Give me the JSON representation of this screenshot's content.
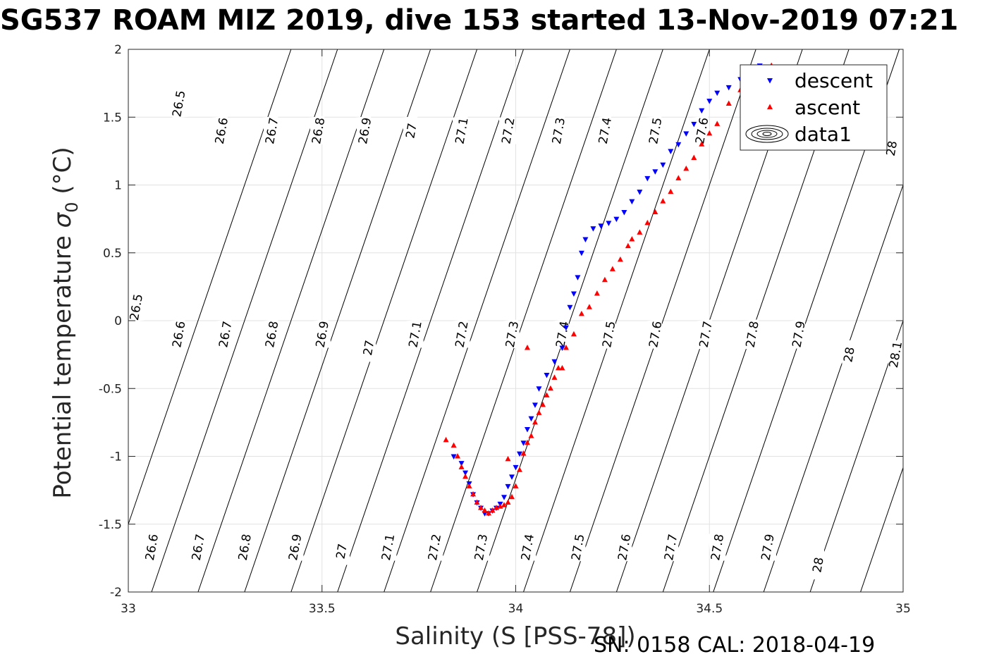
{
  "chart_data": {
    "type": "scatter",
    "title": "SG537 ROAM MIZ 2019, dive 153 started 13-Nov-2019 07:21",
    "xlabel": "Salinity (S [PSS-78])",
    "ylabel_main": "Potential temperature ",
    "ylabel_sym": "σ",
    "ylabel_sub": "0",
    "ylabel_unit": " (°C)",
    "xlim": [
      33,
      35
    ],
    "ylim": [
      -2,
      2
    ],
    "xticks": [
      33,
      33.5,
      34,
      34.5,
      35
    ],
    "xtick_labels": [
      "33",
      "33.5",
      "34",
      "34.5",
      "35"
    ],
    "yticks": [
      -2,
      -1.5,
      -1,
      -0.5,
      0,
      0.5,
      1,
      1.5,
      2
    ],
    "ytick_labels": [
      "-2",
      "-1.5",
      "-1",
      "-0.5",
      "0",
      "0.5",
      "1",
      "1.5",
      "2"
    ],
    "grid": true,
    "legend_position": "top-right",
    "density_contours": [
      {
        "value": "26.5",
        "x_at_bottom": 32.94
      },
      {
        "value": "26.6",
        "x_at_bottom": 33.06
      },
      {
        "value": "26.7",
        "x_at_bottom": 33.18
      },
      {
        "value": "26.8",
        "x_at_bottom": 33.3
      },
      {
        "value": "26.9",
        "x_at_bottom": 33.42
      },
      {
        "value": "27",
        "x_at_bottom": 33.54
      },
      {
        "value": "27.1",
        "x_at_bottom": 33.66
      },
      {
        "value": "27.2",
        "x_at_bottom": 33.78
      },
      {
        "value": "27.3",
        "x_at_bottom": 33.9
      },
      {
        "value": "27.4",
        "x_at_bottom": 34.02
      },
      {
        "value": "27.5",
        "x_at_bottom": 34.14
      },
      {
        "value": "27.6",
        "x_at_bottom": 34.26
      },
      {
        "value": "27.7",
        "x_at_bottom": 34.38
      },
      {
        "value": "27.8",
        "x_at_bottom": 34.51
      },
      {
        "value": "27.9",
        "x_at_bottom": 34.64
      },
      {
        "value": "28",
        "x_at_bottom": 34.76
      },
      {
        "value": "28.1",
        "x_at_bottom": 34.89
      }
    ],
    "contour_labels": [
      {
        "text": "26.5",
        "s": 33.13,
        "t": 1.6
      },
      {
        "text": "26.6",
        "s": 33.24,
        "t": 1.4
      },
      {
        "text": "26.7",
        "s": 33.37,
        "t": 1.4
      },
      {
        "text": "26.8",
        "s": 33.49,
        "t": 1.4
      },
      {
        "text": "26.9",
        "s": 33.61,
        "t": 1.4
      },
      {
        "text": "27",
        "s": 33.73,
        "t": 1.4
      },
      {
        "text": "27.1",
        "s": 33.86,
        "t": 1.4
      },
      {
        "text": "27.2",
        "s": 33.98,
        "t": 1.4
      },
      {
        "text": "27.3",
        "s": 34.11,
        "t": 1.4
      },
      {
        "text": "27.4",
        "s": 34.23,
        "t": 1.4
      },
      {
        "text": "27.5",
        "s": 34.36,
        "t": 1.4
      },
      {
        "text": "27.6",
        "s": 34.48,
        "t": 1.4
      },
      {
        "text": "28",
        "s": 34.97,
        "t": 1.27
      },
      {
        "text": "26.5",
        "s": 33.02,
        "t": 0.1
      },
      {
        "text": "26.6",
        "s": 33.13,
        "t": -0.1
      },
      {
        "text": "26.7",
        "s": 33.25,
        "t": -0.1
      },
      {
        "text": "26.8",
        "s": 33.37,
        "t": -0.1
      },
      {
        "text": "26.9",
        "s": 33.5,
        "t": -0.1
      },
      {
        "text": "27",
        "s": 33.62,
        "t": -0.2
      },
      {
        "text": "27.1",
        "s": 33.74,
        "t": -0.1
      },
      {
        "text": "27.2",
        "s": 33.86,
        "t": -0.1
      },
      {
        "text": "27.3",
        "s": 33.99,
        "t": -0.1
      },
      {
        "text": "27.4",
        "s": 34.12,
        "t": -0.1
      },
      {
        "text": "27.5",
        "s": 34.24,
        "t": -0.1
      },
      {
        "text": "27.6",
        "s": 34.36,
        "t": -0.1
      },
      {
        "text": "27.7",
        "s": 34.49,
        "t": -0.1
      },
      {
        "text": "27.8",
        "s": 34.61,
        "t": -0.1
      },
      {
        "text": "27.9",
        "s": 34.73,
        "t": -0.1
      },
      {
        "text": "28",
        "s": 34.86,
        "t": -0.25
      },
      {
        "text": "28.1",
        "s": 34.98,
        "t": -0.25
      },
      {
        "text": "26.6",
        "s": 33.06,
        "t": -1.67
      },
      {
        "text": "26.7",
        "s": 33.18,
        "t": -1.67
      },
      {
        "text": "26.8",
        "s": 33.3,
        "t": -1.67
      },
      {
        "text": "26.9",
        "s": 33.43,
        "t": -1.67
      },
      {
        "text": "27",
        "s": 33.55,
        "t": -1.7
      },
      {
        "text": "27.1",
        "s": 33.67,
        "t": -1.67
      },
      {
        "text": "27.2",
        "s": 33.79,
        "t": -1.67
      },
      {
        "text": "27.3",
        "s": 33.91,
        "t": -1.67
      },
      {
        "text": "27.4",
        "s": 34.03,
        "t": -1.67
      },
      {
        "text": "27.5",
        "s": 34.16,
        "t": -1.67
      },
      {
        "text": "27.6",
        "s": 34.28,
        "t": -1.67
      },
      {
        "text": "27.7",
        "s": 34.4,
        "t": -1.67
      },
      {
        "text": "27.8",
        "s": 34.52,
        "t": -1.67
      },
      {
        "text": "27.9",
        "s": 34.65,
        "t": -1.67
      },
      {
        "text": "28",
        "s": 34.78,
        "t": -1.8
      }
    ],
    "series": [
      {
        "name": "descent",
        "marker": "triangle-down",
        "color": "#0000ff",
        "s": [
          33.84,
          33.86,
          33.87,
          33.88,
          33.89,
          33.9,
          33.91,
          33.92,
          33.93,
          33.94,
          33.95,
          33.96,
          33.97,
          33.98,
          33.99,
          34.0,
          34.01,
          34.02,
          34.03,
          34.04,
          34.05,
          34.06,
          34.08,
          34.1,
          34.12,
          34.13,
          34.14,
          34.15,
          34.16,
          34.17,
          34.18,
          34.2,
          34.22,
          34.24,
          34.26,
          34.28,
          34.3,
          34.32,
          34.34,
          34.36,
          34.38,
          34.4,
          34.42,
          34.44,
          34.46,
          34.48,
          34.5,
          34.52,
          34.55,
          34.58,
          34.6,
          34.62,
          34.63
        ],
        "t": [
          -1.0,
          -1.05,
          -1.12,
          -1.2,
          -1.28,
          -1.34,
          -1.38,
          -1.42,
          -1.42,
          -1.4,
          -1.38,
          -1.35,
          -1.3,
          -1.22,
          -1.15,
          -1.08,
          -0.98,
          -0.9,
          -0.8,
          -0.72,
          -0.62,
          -0.5,
          -0.4,
          -0.3,
          -0.2,
          -0.05,
          0.1,
          0.2,
          0.32,
          0.5,
          0.6,
          0.68,
          0.7,
          0.72,
          0.75,
          0.8,
          0.88,
          0.95,
          1.05,
          1.1,
          1.15,
          1.25,
          1.3,
          1.38,
          1.45,
          1.55,
          1.62,
          1.68,
          1.72,
          1.78,
          1.82,
          1.85,
          1.88
        ]
      },
      {
        "name": "ascent",
        "marker": "triangle-up",
        "color": "#ff0000",
        "s": [
          33.82,
          33.84,
          33.85,
          33.86,
          33.87,
          33.88,
          33.89,
          33.9,
          33.91,
          33.92,
          33.93,
          33.94,
          33.95,
          33.96,
          33.97,
          33.98,
          33.99,
          34.0,
          34.01,
          34.02,
          34.03,
          34.04,
          34.05,
          34.06,
          34.07,
          34.08,
          34.09,
          34.1,
          34.11,
          34.13,
          34.15,
          34.17,
          34.19,
          34.21,
          34.23,
          34.25,
          34.27,
          34.29,
          34.3,
          34.32,
          34.34,
          34.36,
          34.38,
          34.4,
          34.42,
          34.44,
          34.46,
          34.48,
          34.5,
          34.52,
          34.55,
          34.58,
          34.6,
          34.62,
          34.64,
          34.66,
          33.98,
          34.03,
          34.12
        ],
        "t": [
          -0.88,
          -0.92,
          -1.0,
          -1.08,
          -1.15,
          -1.22,
          -1.28,
          -1.34,
          -1.38,
          -1.4,
          -1.42,
          -1.4,
          -1.38,
          -1.37,
          -1.36,
          -1.34,
          -1.3,
          -1.22,
          -1.1,
          -0.98,
          -0.9,
          -0.85,
          -0.75,
          -0.68,
          -0.62,
          -0.55,
          -0.5,
          -0.42,
          -0.35,
          -0.2,
          -0.1,
          0.05,
          0.1,
          0.2,
          0.3,
          0.38,
          0.45,
          0.55,
          0.6,
          0.65,
          0.72,
          0.8,
          0.88,
          0.95,
          1.05,
          1.12,
          1.2,
          1.3,
          1.38,
          1.45,
          1.6,
          1.7,
          1.75,
          1.8,
          1.86,
          1.88,
          -1.02,
          -0.2,
          -0.35
        ]
      },
      {
        "name": "data1",
        "marker": "contour-ellipses",
        "color": "#000000",
        "s": [],
        "t": []
      }
    ]
  },
  "footer": "SN: 0158  CAL: 2018-04-19"
}
